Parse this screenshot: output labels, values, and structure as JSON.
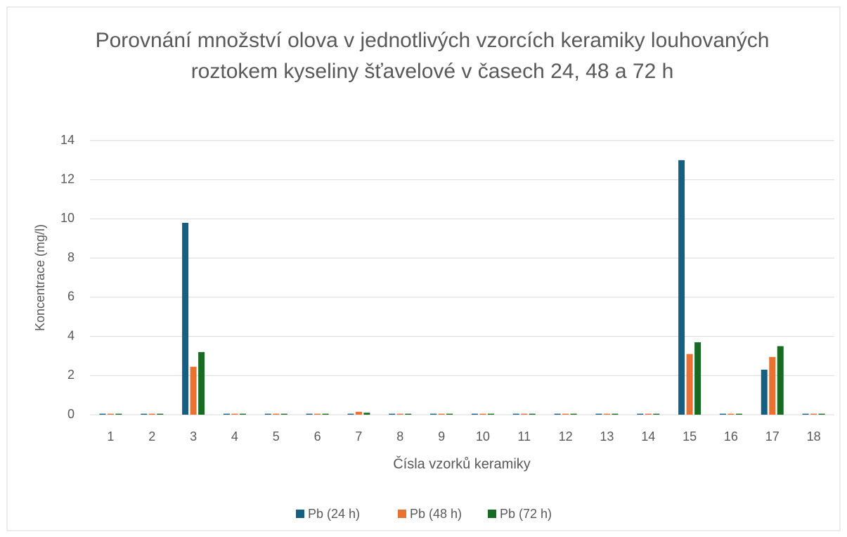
{
  "chart_data": {
    "type": "bar",
    "title": "Porovnání množství olova v jednotlivých  vzorcích keramiky louhovaných roztokem kyseliny šťavelové v časech 24, 48 a 72 h",
    "x_label": "Čísla vzorků keramiky",
    "y_label": "Koncentrace (mg/l)",
    "categories": [
      "1",
      "2",
      "3",
      "4",
      "5",
      "6",
      "7",
      "8",
      "9",
      "10",
      "11",
      "12",
      "13",
      "14",
      "15",
      "16",
      "17",
      "18"
    ],
    "series": [
      {
        "name": "Pb (24 h)",
        "color": "#156082",
        "values": [
          0.05,
          0.05,
          9.8,
          0.05,
          0.05,
          0.05,
          0.05,
          0.05,
          0.05,
          0.05,
          0.05,
          0.05,
          0.05,
          0.05,
          13.0,
          0.05,
          2.3,
          0.05
        ]
      },
      {
        "name": "Pb (48 h)",
        "color": "#e97132",
        "values": [
          0.05,
          0.05,
          2.45,
          0.05,
          0.05,
          0.05,
          0.15,
          0.05,
          0.05,
          0.05,
          0.05,
          0.05,
          0.05,
          0.05,
          3.1,
          0.05,
          2.95,
          0.05
        ]
      },
      {
        "name": "Pb (72 h)",
        "color": "#196b24",
        "values": [
          0.05,
          0.05,
          3.2,
          0.05,
          0.05,
          0.05,
          0.1,
          0.05,
          0.05,
          0.05,
          0.05,
          0.05,
          0.05,
          0.05,
          3.7,
          0.05,
          3.5,
          0.05
        ]
      }
    ],
    "ylim": [
      0,
      14
    ],
    "yticks": [
      0,
      2,
      4,
      6,
      8,
      10,
      12,
      14
    ],
    "grid": true,
    "legend": "bottom"
  }
}
